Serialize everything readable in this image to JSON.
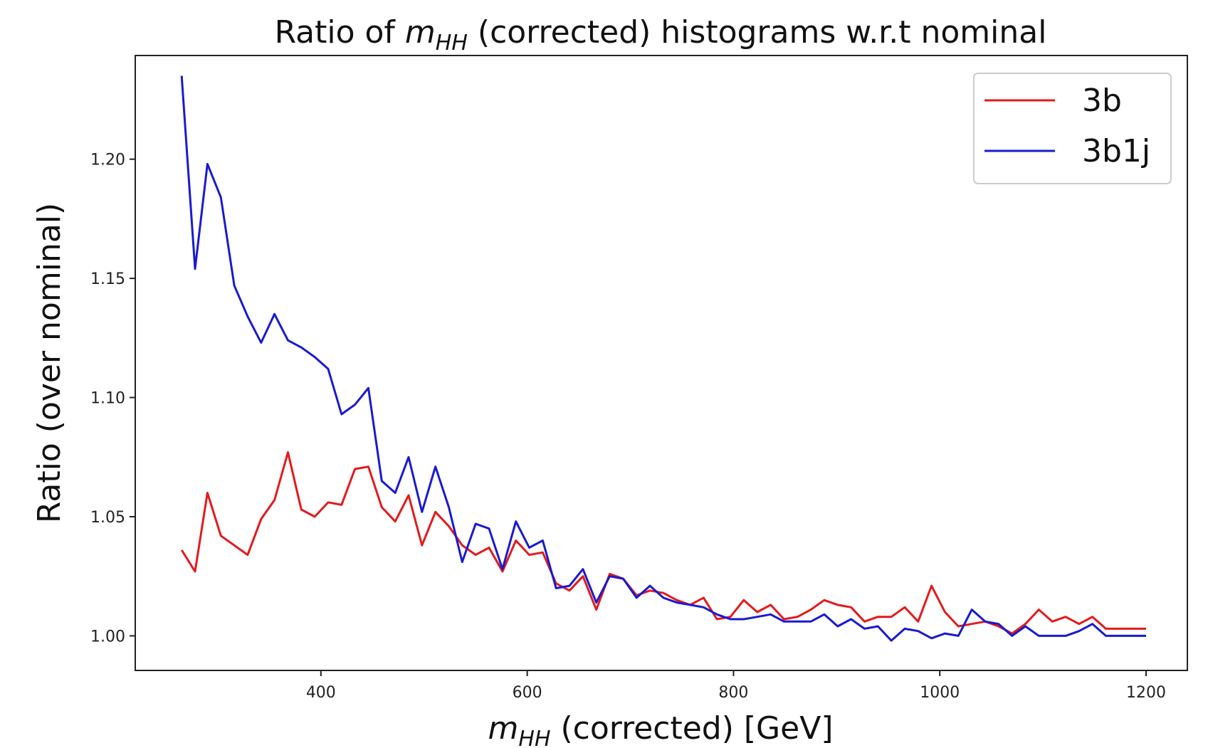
{
  "chart_data": {
    "type": "line",
    "title": {
      "prefix": "Ratio of ",
      "var_main": "m",
      "var_sub": "HH",
      "suffix": " (corrected) histograms w.r.t nominal"
    },
    "xlabel": {
      "var_main": "m",
      "var_sub": "HH",
      "suffix": " (corrected) [GeV]"
    },
    "ylabel": "Ratio (over nominal)",
    "xlim": [
      220,
      1240
    ],
    "ylim": [
      0.9855,
      1.2435
    ],
    "xticks": [
      {
        "value": 400,
        "label": "400"
      },
      {
        "value": 600,
        "label": "600"
      },
      {
        "value": 800,
        "label": "800"
      },
      {
        "value": 1000,
        "label": "1000"
      },
      {
        "value": 1200,
        "label": "1200"
      }
    ],
    "yticks": [
      {
        "value": 1.0,
        "label": "1.00"
      },
      {
        "value": 1.05,
        "label": "1.05"
      },
      {
        "value": 1.1,
        "label": "1.10"
      },
      {
        "value": 1.15,
        "label": "1.15"
      },
      {
        "value": 1.2,
        "label": "1.20"
      }
    ],
    "grid": false,
    "legend_position": "top-right",
    "x": [
      265,
      278,
      290,
      303,
      316,
      329,
      342,
      355,
      368,
      381,
      394,
      407,
      420,
      433,
      446,
      459,
      472,
      485,
      498,
      511,
      524,
      537,
      550,
      563,
      576,
      589,
      602,
      615,
      628,
      641,
      654,
      667,
      680,
      693,
      706,
      719,
      732,
      745,
      758,
      771,
      784,
      797,
      810,
      823,
      836,
      849,
      862,
      875,
      888,
      901,
      914,
      927,
      940,
      953,
      966,
      979,
      992,
      1005,
      1018,
      1031,
      1044,
      1057,
      1070,
      1083,
      1096,
      1109,
      1122,
      1135,
      1148,
      1161,
      1174,
      1187,
      1200
    ],
    "series": [
      {
        "name": "3b",
        "color": "#e41a1c",
        "values": [
          1.036,
          1.027,
          1.06,
          1.042,
          1.038,
          1.034,
          1.049,
          1.057,
          1.077,
          1.053,
          1.05,
          1.056,
          1.055,
          1.07,
          1.071,
          1.054,
          1.048,
          1.059,
          1.038,
          1.052,
          1.046,
          1.038,
          1.034,
          1.037,
          1.027,
          1.04,
          1.034,
          1.035,
          1.022,
          1.019,
          1.025,
          1.011,
          1.026,
          1.024,
          1.017,
          1.019,
          1.018,
          1.015,
          1.013,
          1.016,
          1.007,
          1.008,
          1.015,
          1.01,
          1.013,
          1.007,
          1.008,
          1.011,
          1.015,
          1.013,
          1.012,
          1.006,
          1.008,
          1.008,
          1.012,
          1.006,
          1.021,
          1.01,
          1.004,
          1.005,
          1.006,
          1.004,
          1.001,
          1.005,
          1.011,
          1.006,
          1.008,
          1.005,
          1.008,
          1.003,
          1.003,
          1.003,
          1.003
        ]
      },
      {
        "name": "3b1j",
        "color": "#1a1acf",
        "values": [
          1.235,
          1.154,
          1.198,
          1.184,
          1.147,
          1.134,
          1.123,
          1.135,
          1.124,
          1.121,
          1.117,
          1.112,
          1.093,
          1.097,
          1.104,
          1.065,
          1.06,
          1.075,
          1.052,
          1.071,
          1.054,
          1.031,
          1.047,
          1.045,
          1.028,
          1.048,
          1.037,
          1.04,
          1.02,
          1.021,
          1.028,
          1.014,
          1.025,
          1.024,
          1.016,
          1.021,
          1.016,
          1.014,
          1.013,
          1.012,
          1.009,
          1.007,
          1.007,
          1.008,
          1.009,
          1.006,
          1.006,
          1.006,
          1.009,
          1.004,
          1.007,
          1.003,
          1.004,
          0.998,
          1.003,
          1.002,
          0.999,
          1.001,
          1.0,
          1.011,
          1.006,
          1.005,
          1.0,
          1.004,
          1.0,
          1.0,
          1.0,
          1.002,
          1.005,
          1.0,
          1.0,
          1.0,
          1.0
        ]
      }
    ]
  }
}
